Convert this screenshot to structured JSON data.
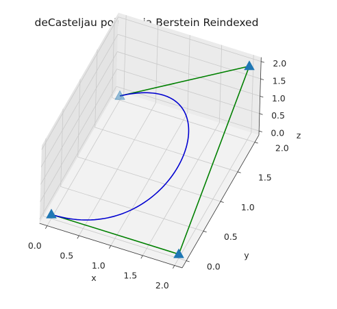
{
  "chart_data": {
    "type": "3d-line",
    "title": "deCasteljau points via Berstein Reindexed",
    "xlabel": "x",
    "ylabel": "y",
    "zlabel": "z",
    "xlim": [
      0,
      2
    ],
    "ylim": [
      0,
      2
    ],
    "zlim": [
      0,
      2
    ],
    "x_ticks": [
      "0.0",
      "0.5",
      "1.0",
      "1.5",
      "2.0"
    ],
    "y_ticks": [
      "0.0",
      "0.5",
      "1.0",
      "1.5",
      "2.0"
    ],
    "z_ticks": [
      "0.0",
      "0.5",
      "1.0",
      "1.5",
      "2.0"
    ],
    "grid": true,
    "control_points": [
      {
        "x": 0,
        "y": 0,
        "z": 0
      },
      {
        "x": 2,
        "y": 0,
        "z": 0
      },
      {
        "x": 2,
        "y": 2,
        "z": 2
      },
      {
        "x": 0,
        "y": 2,
        "z": 0
      }
    ],
    "colors": {
      "control_polygon": "#008000",
      "curve": "#0000d0",
      "markers": "#1f77b4"
    }
  }
}
